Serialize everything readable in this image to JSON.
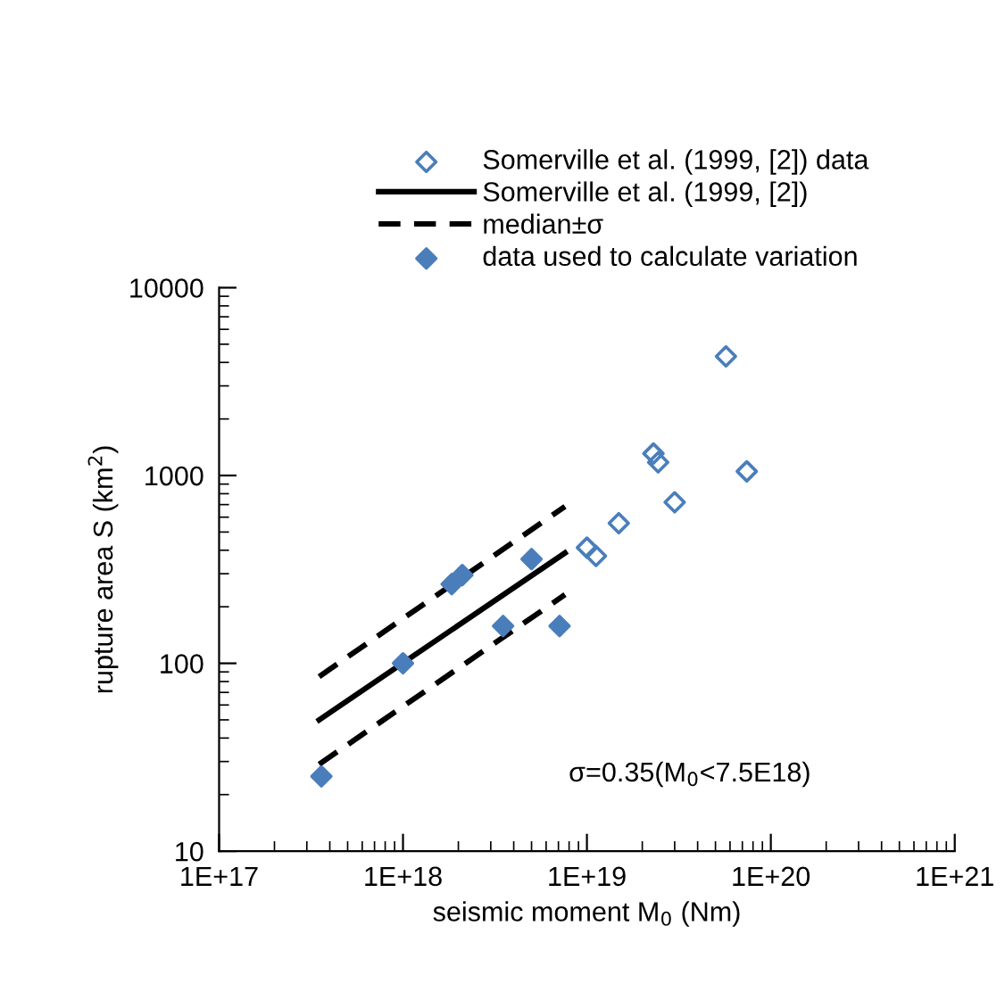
{
  "chart_data": {
    "type": "scatter",
    "xlabel": "seismic moment M$_{0}$ (Nm)",
    "ylabel": "rupture area S (km$^{2}$)",
    "log": "xy",
    "grid": false,
    "legend": "top",
    "marker": "diamond",
    "xlim": [
      1e+17,
      1e+21
    ],
    "ylim": [
      10,
      10000
    ],
    "xticks": [
      {
        "value": 1e+17,
        "label": "1E+17"
      },
      {
        "value": 1e+18,
        "label": "1E+18"
      },
      {
        "value": 1e+19,
        "label": "1E+19"
      },
      {
        "value": 1e+20,
        "label": "1E+20"
      },
      {
        "value": 1e+21,
        "label": "1E+21"
      }
    ],
    "yticks": [
      10,
      100,
      1000,
      10000
    ],
    "annotations": [
      "σ=0.35(M$_{0}$<7.5E18)"
    ],
    "series": [
      {
        "name": "Somerville et al. (1999, [2]) data",
        "color": "#4a7ebb",
        "marker": "diamond-open",
        "x": [
          5.7e+19,
          2.3e+19,
          2.44e+19,
          7.4e+19,
          3e+19,
          1.49e+19,
          1e+19,
          1.12e+19
        ],
        "values": [
          4310,
          1309,
          1175,
          1052,
          720,
          557,
          413,
          373
        ]
      },
      {
        "name": "Somerville et al. (1999, [2])",
        "type": "line",
        "color": "#000000",
        "line_style": "solid",
        "marker": "none",
        "x": [
          3.5e+17,
          7.6e+18
        ],
        "values": [
          50,
          387
        ]
      },
      {
        "name": "median±σ",
        "type": "line",
        "color": "#000000",
        "line_style": "dashed",
        "marker": "none",
        "x": [
          3.5e+17,
          7.6e+18
        ],
        "values": [
          85,
          684
        ]
      },
      {
        "type": "line",
        "color": "#000000",
        "line_style": "dashed",
        "marker": "none",
        "x": [
          3.5e+17,
          7.6e+18
        ],
        "values": [
          29,
          232
        ]
      },
      {
        "name": "data used to calculate variation",
        "color": "#4a7ebb",
        "x": [
          3.6e+17,
          1e+18,
          1.84e+18,
          2.1e+18,
          5e+18,
          3.5e+18,
          7.1e+18
        ],
        "values": [
          25,
          100,
          264,
          295,
          359,
          158,
          158
        ]
      }
    ]
  }
}
